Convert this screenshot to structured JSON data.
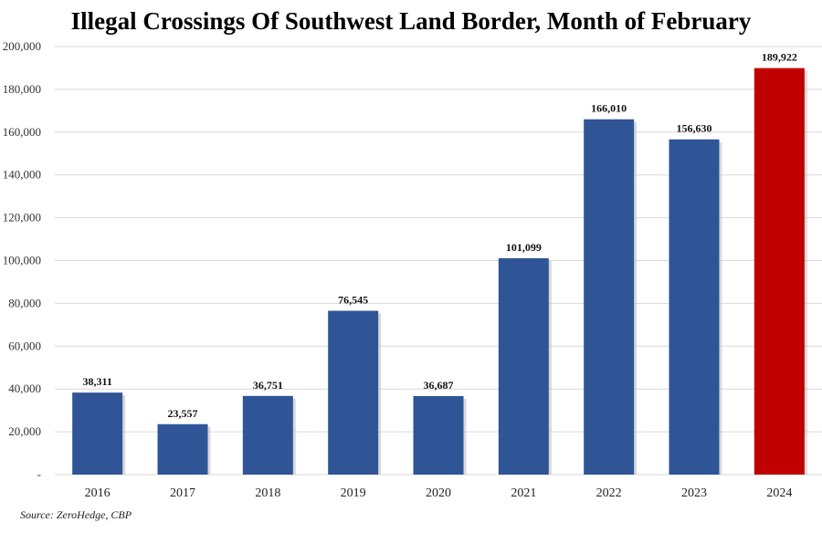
{
  "chart_data": {
    "type": "bar",
    "title": "Illegal Crossings Of Southwest Land Border, Month of February",
    "categories": [
      "2016",
      "2017",
      "2018",
      "2019",
      "2020",
      "2021",
      "2022",
      "2023",
      "2024"
    ],
    "values": [
      38311,
      23557,
      36751,
      76545,
      36687,
      101099,
      166010,
      156630,
      189922
    ],
    "data_labels": [
      "38,311",
      "23,557",
      "36,751",
      "76,545",
      "36,687",
      "101,099",
      "166,010",
      "156,630",
      "189,922"
    ],
    "ylim": [
      0,
      200000
    ],
    "yticks": [
      0,
      20000,
      40000,
      60000,
      80000,
      100000,
      120000,
      140000,
      160000,
      180000,
      200000
    ],
    "ytick_labels": [
      "-",
      "20,000",
      "40,000",
      "60,000",
      "80,000",
      "100,000",
      "120,000",
      "140,000",
      "160,000",
      "180,000",
      "200,000"
    ],
    "grid": true,
    "legend": "none",
    "colors": {
      "bar": "#2f5597",
      "highlight": "#c00000",
      "highlight_index": 8
    },
    "source": "Source: ZeroHedge, CBP"
  }
}
